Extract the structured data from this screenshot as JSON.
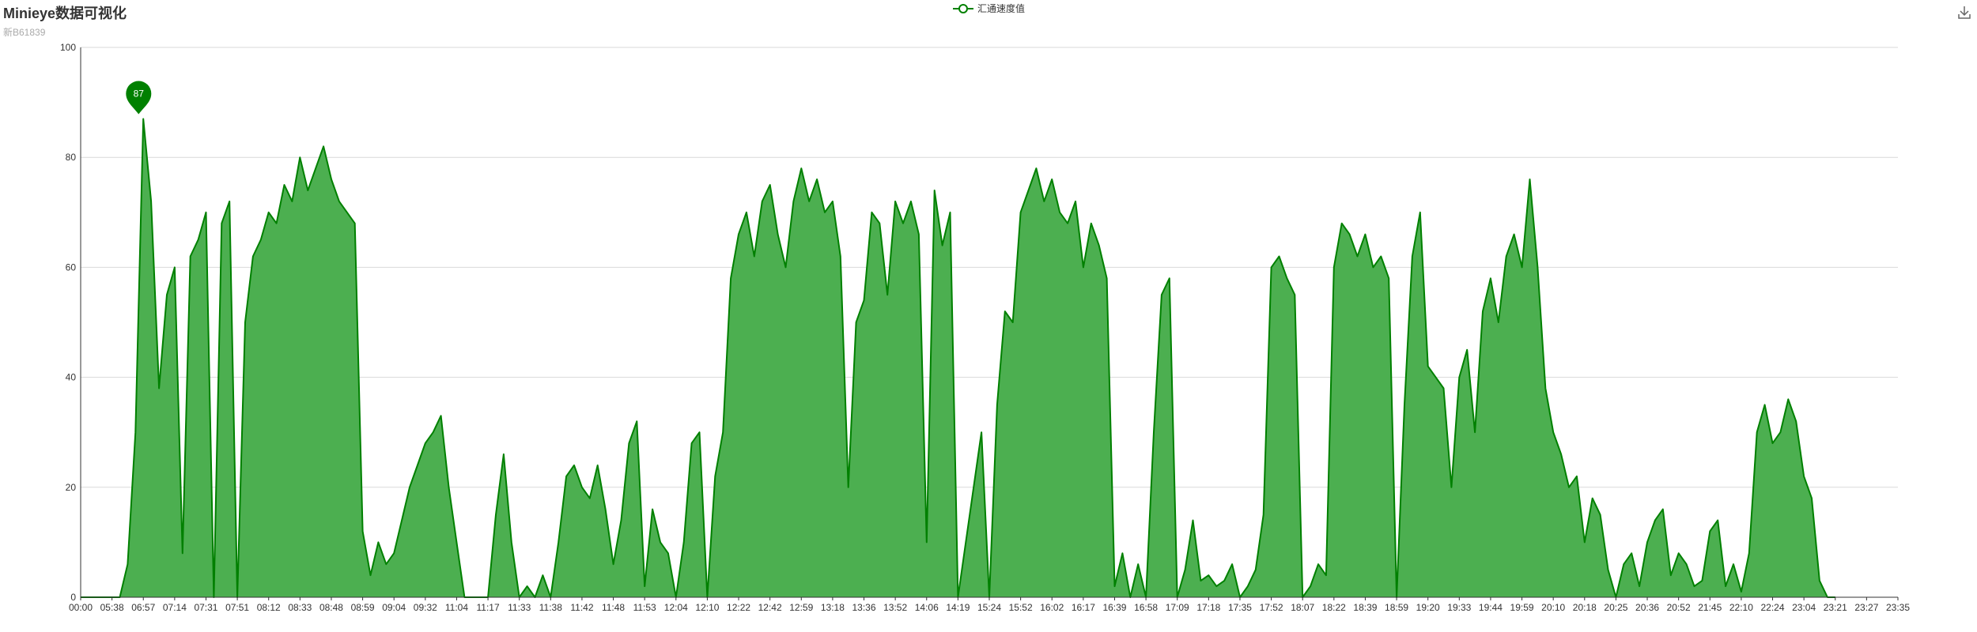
{
  "title": "Minieye数据可视化",
  "subtitle": "新B61839",
  "legend": {
    "label": "汇通速度值",
    "color": "#008000",
    "area_color": "#4caf50"
  },
  "toolbox": {
    "save_icon": "download-icon"
  },
  "chart_data": {
    "type": "area",
    "title": "Minieye数据可视化",
    "subtitle": "新B61839",
    "series_name": "汇通速度值",
    "ylim": [
      0,
      100
    ],
    "y_ticks": [
      0,
      20,
      40,
      60,
      80,
      100
    ],
    "x_ticks": [
      "00:00",
      "05:38",
      "06:57",
      "07:14",
      "07:31",
      "07:51",
      "08:12",
      "08:33",
      "08:48",
      "08:59",
      "09:04",
      "09:32",
      "11:04",
      "11:17",
      "11:33",
      "11:38",
      "11:42",
      "11:48",
      "11:53",
      "12:04",
      "12:10",
      "12:22",
      "12:42",
      "12:59",
      "13:18",
      "13:36",
      "13:52",
      "14:06",
      "14:19",
      "15:24",
      "15:52",
      "16:02",
      "16:17",
      "16:39",
      "16:58",
      "17:09",
      "17:18",
      "17:35",
      "17:52",
      "18:07",
      "18:22",
      "18:39",
      "18:59",
      "19:20",
      "19:33",
      "19:44",
      "19:59",
      "20:10",
      "20:18",
      "20:25",
      "20:36",
      "20:52",
      "21:45",
      "22:10",
      "22:24",
      "23:04",
      "23:21",
      "23:27",
      "23:35"
    ],
    "max_marker": {
      "label": "87",
      "value": 87,
      "x_index": 1.85
    },
    "grid": true,
    "samples_per_tick": 4,
    "values": [
      0,
      0,
      0,
      0,
      0,
      0,
      6,
      30,
      87,
      72,
      38,
      55,
      60,
      8,
      62,
      65,
      70,
      0,
      68,
      72,
      0,
      50,
      62,
      65,
      70,
      68,
      75,
      72,
      80,
      74,
      78,
      82,
      76,
      72,
      70,
      68,
      12,
      4,
      10,
      6,
      8,
      14,
      20,
      24,
      28,
      30,
      33,
      20,
      10,
      0,
      0,
      0,
      0,
      15,
      26,
      10,
      0,
      2,
      0,
      4,
      0,
      10,
      22,
      24,
      20,
      18,
      24,
      16,
      6,
      14,
      28,
      32,
      2,
      16,
      10,
      8,
      0,
      10,
      28,
      30,
      0,
      22,
      30,
      58,
      66,
      70,
      62,
      72,
      75,
      66,
      60,
      72,
      78,
      72,
      76,
      70,
      72,
      62,
      20,
      50,
      54,
      70,
      68,
      55,
      72,
      68,
      72,
      66,
      10,
      74,
      64,
      70,
      0,
      10,
      20,
      30,
      0,
      35,
      52,
      50,
      70,
      74,
      78,
      72,
      76,
      70,
      68,
      72,
      60,
      68,
      64,
      58,
      2,
      8,
      0,
      6,
      0,
      30,
      55,
      58,
      0,
      5,
      14,
      3,
      4,
      2,
      3,
      6,
      0,
      2,
      5,
      15,
      60,
      62,
      58,
      55,
      0,
      2,
      6,
      4,
      60,
      68,
      66,
      62,
      66,
      60,
      62,
      58,
      0,
      35,
      62,
      70,
      42,
      40,
      38,
      20,
      40,
      45,
      30,
      52,
      58,
      50,
      62,
      66,
      60,
      76,
      60,
      38,
      30,
      26,
      20,
      22,
      10,
      18,
      15,
      5,
      0,
      6,
      8,
      2,
      10,
      14,
      16,
      4,
      8,
      6,
      2,
      3,
      12,
      14,
      2,
      6,
      1,
      8,
      30,
      35,
      28,
      30,
      36,
      32,
      22,
      18,
      3,
      0,
      0
    ]
  }
}
